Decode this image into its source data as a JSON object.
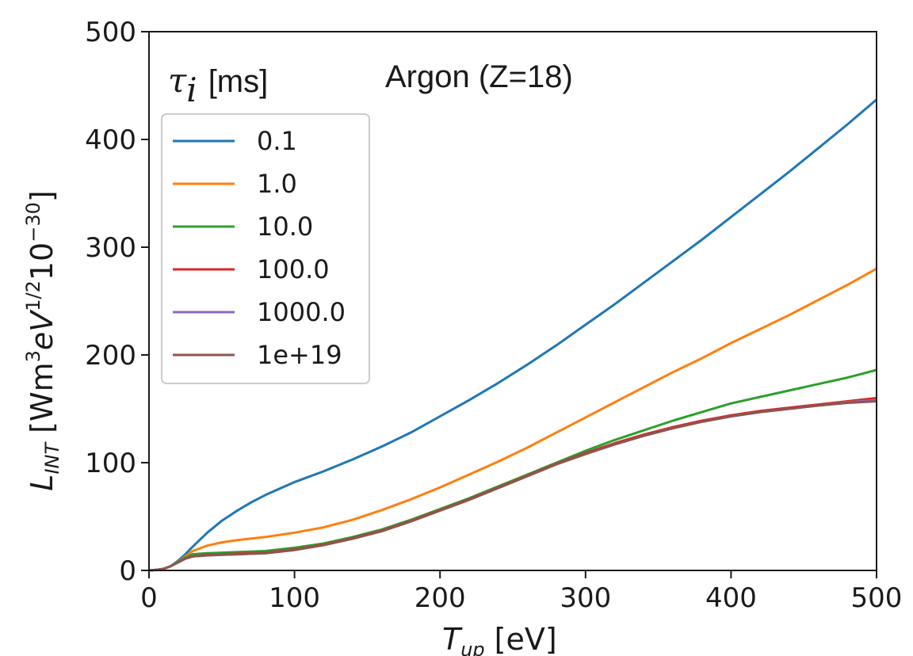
{
  "chart_data": {
    "type": "line",
    "xlabel": {
      "main": "T",
      "sub": "up",
      "unit": "[eV]"
    },
    "ylabel": {
      "main": "L",
      "sub": "INT",
      "unit": "[Wm",
      "sup1": "3",
      "mid": "eV",
      "sup2": "1/2",
      "tail": "10",
      "sup3": "−30",
      "close": "]"
    },
    "xlim": [
      0,
      500
    ],
    "ylim": [
      0,
      500
    ],
    "xticks": [
      0,
      100,
      200,
      300,
      400,
      500
    ],
    "yticks": [
      0,
      100,
      200,
      300,
      400,
      500
    ],
    "annotation": "Argon (Z=18)",
    "legend": {
      "title_symbol": "τ",
      "title_sub": "i",
      "title_unit": "[ms]",
      "placement": "upper-left"
    },
    "series": [
      {
        "name": "0.1",
        "color": "#1f77b4",
        "x": [
          0,
          5,
          10,
          15,
          20,
          25,
          30,
          40,
          50,
          60,
          70,
          80,
          90,
          100,
          120,
          140,
          160,
          180,
          200,
          220,
          240,
          260,
          280,
          300,
          320,
          340,
          360,
          380,
          400,
          420,
          440,
          460,
          480,
          500
        ],
        "y": [
          0,
          0.5,
          1.5,
          4,
          9,
          15,
          22,
          35,
          46,
          55,
          63,
          70,
          76,
          82,
          92,
          103,
          115,
          128,
          143,
          158,
          174,
          191,
          209,
          228,
          247,
          267,
          287,
          307,
          328,
          349,
          370,
          392,
          414,
          437
        ]
      },
      {
        "name": "1.0",
        "color": "#ff7f0e",
        "x": [
          0,
          5,
          10,
          15,
          20,
          25,
          30,
          40,
          50,
          60,
          80,
          100,
          120,
          140,
          160,
          180,
          200,
          220,
          240,
          260,
          280,
          300,
          320,
          340,
          360,
          380,
          400,
          420,
          440,
          460,
          480,
          500
        ],
        "y": [
          0,
          0.5,
          1.5,
          4,
          8,
          13,
          18,
          23,
          26,
          28,
          31,
          35,
          40,
          47,
          56,
          66,
          77,
          89,
          101,
          114,
          128,
          142,
          156,
          170,
          184,
          197,
          211,
          224,
          237,
          251,
          265,
          280
        ]
      },
      {
        "name": "10.0",
        "color": "#2ca02c",
        "x": [
          0,
          5,
          10,
          15,
          20,
          25,
          30,
          40,
          50,
          60,
          80,
          100,
          120,
          140,
          160,
          180,
          200,
          220,
          240,
          260,
          280,
          300,
          320,
          340,
          360,
          380,
          400,
          420,
          440,
          460,
          480,
          500
        ],
        "y": [
          0,
          0.5,
          1.5,
          4,
          8,
          12,
          15,
          16,
          16.5,
          17,
          18,
          21,
          25,
          31,
          38,
          47,
          57,
          67,
          78,
          89,
          100,
          111,
          121,
          130,
          139,
          147,
          155,
          161,
          167,
          173,
          179,
          186
        ]
      },
      {
        "name": "100.0",
        "color": "#d62728",
        "x": [
          0,
          5,
          10,
          15,
          20,
          25,
          30,
          40,
          50,
          60,
          80,
          100,
          120,
          140,
          160,
          180,
          200,
          220,
          240,
          260,
          280,
          300,
          320,
          340,
          360,
          380,
          400,
          420,
          440,
          460,
          480,
          500
        ],
        "y": [
          0,
          0.5,
          1.5,
          4,
          7.5,
          11,
          13,
          14.5,
          15,
          15.5,
          16.5,
          19.5,
          24,
          30,
          37,
          46,
          56,
          66,
          77,
          88,
          99,
          109,
          118,
          126,
          133,
          139,
          144,
          148,
          151,
          154,
          157,
          160
        ]
      },
      {
        "name": "1000.0",
        "color": "#9467bd",
        "x": [
          0,
          5,
          10,
          15,
          20,
          25,
          30,
          40,
          50,
          60,
          80,
          100,
          120,
          140,
          160,
          180,
          200,
          220,
          240,
          260,
          280,
          300,
          320,
          340,
          360,
          380,
          400,
          420,
          440,
          460,
          480,
          500
        ],
        "y": [
          0,
          0.5,
          1.5,
          4,
          7.5,
          11,
          13,
          14,
          14.5,
          15,
          16,
          19,
          23.5,
          29.5,
          36.5,
          45.5,
          55.5,
          65.5,
          76.5,
          87.5,
          98.5,
          108,
          117,
          125,
          132,
          138,
          143,
          147,
          150,
          153,
          156,
          158
        ]
      },
      {
        "name": "1e+19",
        "color": "#8c564b",
        "x": [
          0,
          5,
          10,
          15,
          20,
          25,
          30,
          40,
          50,
          60,
          80,
          100,
          120,
          140,
          160,
          180,
          200,
          220,
          240,
          260,
          280,
          300,
          320,
          340,
          360,
          380,
          400,
          420,
          440,
          460,
          480,
          500
        ],
        "y": [
          0,
          0.5,
          1.5,
          4,
          7.5,
          11,
          13,
          14,
          14.5,
          15,
          16,
          19,
          23.5,
          29.5,
          36.5,
          45.5,
          55.5,
          65.5,
          76.5,
          87.5,
          98.5,
          108,
          117,
          125,
          132,
          138,
          143,
          147,
          150,
          153,
          155.5,
          157
        ]
      }
    ]
  }
}
